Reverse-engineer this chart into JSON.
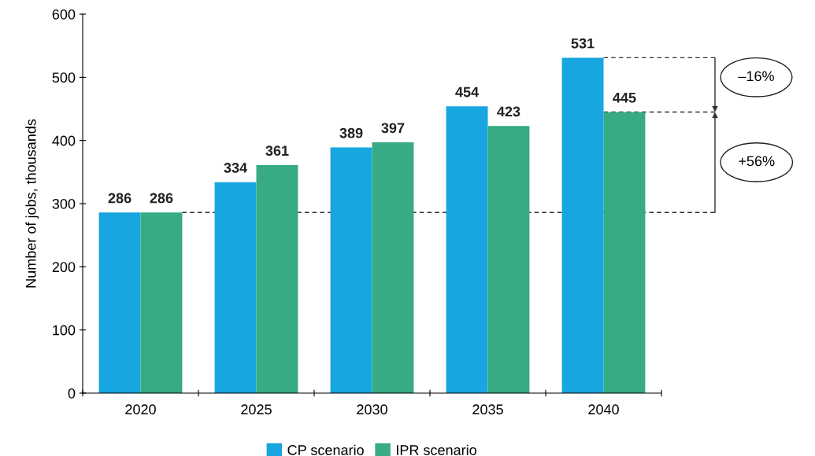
{
  "chart_data": {
    "type": "bar",
    "ylabel": "Number of jobs, thousands",
    "categories": [
      "2020",
      "2025",
      "2030",
      "2035",
      "2040"
    ],
    "series": [
      {
        "name": "CP scenario",
        "color": "#17a6e0",
        "values": [
          286,
          334,
          389,
          454,
          531
        ]
      },
      {
        "name": "IPR scenario",
        "color": "#36ab84",
        "values": [
          286,
          361,
          397,
          423,
          445
        ]
      }
    ],
    "ylim": [
      0,
      600
    ],
    "yticks": [
      0,
      100,
      200,
      300,
      400,
      500,
      600
    ],
    "data_labels": true,
    "grid": false,
    "legend": "bottom",
    "ref_lines": [
      {
        "axis": "y",
        "value": 286,
        "line_style": "dashed",
        "color": "#333333"
      },
      {
        "axis": "y",
        "value": 531,
        "line_style": "dashed",
        "color": "#333333"
      },
      {
        "axis": "y",
        "value": 445,
        "line_style": "dashed",
        "color": "#333333"
      }
    ],
    "annotations": [
      "–16%",
      "+56%"
    ]
  }
}
